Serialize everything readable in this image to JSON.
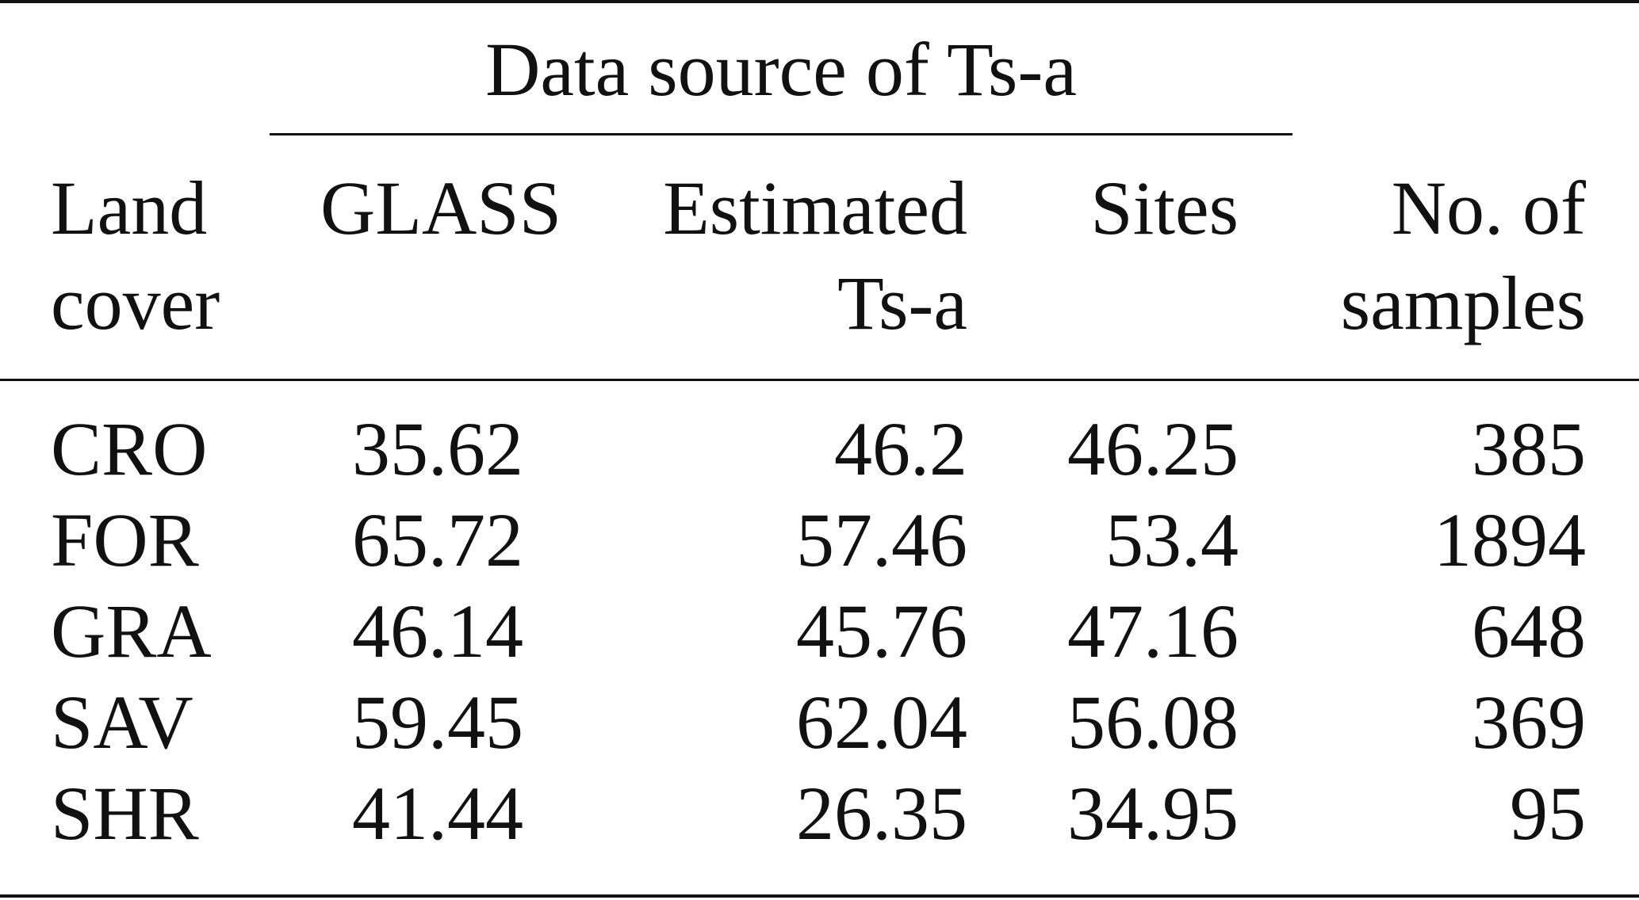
{
  "table": {
    "group_header": "Data source of Ts-a",
    "columns": {
      "land_cover": [
        "Land",
        "cover"
      ],
      "glass": "GLASS",
      "estimated": [
        "Estimated",
        "Ts-a"
      ],
      "sites": "Sites",
      "samples": [
        "No. of",
        "samples"
      ]
    },
    "rows": [
      {
        "land_cover": "CRO",
        "glass": "35.62",
        "estimated": "46.2",
        "sites": "46.25",
        "samples": "385"
      },
      {
        "land_cover": "FOR",
        "glass": "65.72",
        "estimated": "57.46",
        "sites": "53.4",
        "samples": "1894"
      },
      {
        "land_cover": "GRA",
        "glass": "46.14",
        "estimated": "45.76",
        "sites": "47.16",
        "samples": "648"
      },
      {
        "land_cover": "SAV",
        "glass": "59.45",
        "estimated": "62.04",
        "sites": "56.08",
        "samples": "369"
      },
      {
        "land_cover": "SHR",
        "glass": "41.44",
        "estimated": "26.35",
        "sites": "34.95",
        "samples": "95"
      }
    ]
  }
}
